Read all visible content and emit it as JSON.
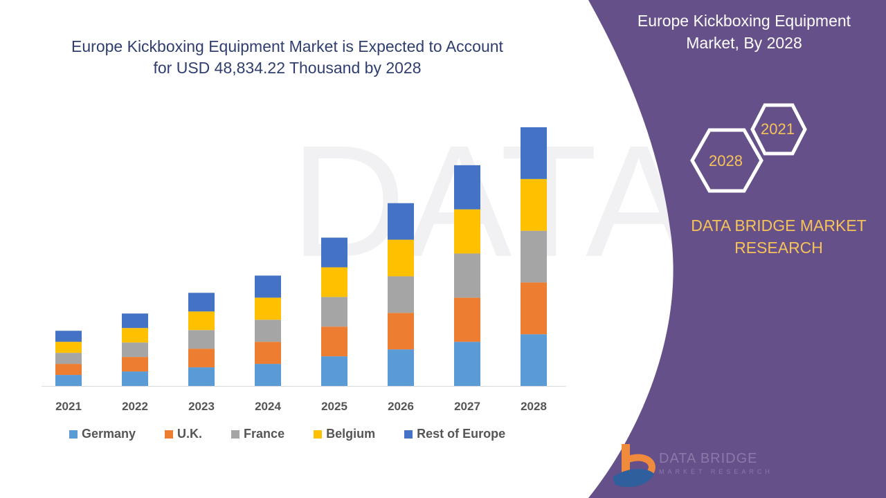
{
  "title_line1": "Europe Kickboxing Equipment Market is Expected to Account",
  "title_line2": "for USD 48,834.22 Thousand by 2028",
  "side_panel": {
    "title_line1": "Europe Kickboxing Equipment",
    "title_line2": "Market, By 2028",
    "hex_start": "2021",
    "hex_end": "2028",
    "brand_line1": "DATA BRIDGE MARKET",
    "brand_line2": "RESEARCH",
    "logo_text": "DATA BRIDGE",
    "logo_sub": "MARKET RESEARCH",
    "color": "#65508a"
  },
  "chart_data": {
    "type": "bar",
    "stacked": true,
    "categories": [
      "2021",
      "2022",
      "2023",
      "2024",
      "2025",
      "2026",
      "2027",
      "2028"
    ],
    "series": [
      {
        "name": "Germany",
        "color": "#5b9bd5",
        "values": [
          16,
          21,
          27,
          32,
          43,
          53,
          64,
          75
        ]
      },
      {
        "name": "U.K.",
        "color": "#ed7d31",
        "values": [
          16,
          21,
          27,
          32,
          43,
          53,
          64,
          75
        ]
      },
      {
        "name": "France",
        "color": "#a5a5a5",
        "values": [
          16,
          21,
          27,
          32,
          43,
          53,
          64,
          75
        ]
      },
      {
        "name": "Belgium",
        "color": "#ffc000",
        "values": [
          16,
          21,
          27,
          32,
          43,
          53,
          64,
          75
        ]
      },
      {
        "name": "Rest of Europe",
        "color": "#4472c4",
        "values": [
          16,
          21,
          27,
          32,
          43,
          53,
          64,
          75
        ]
      }
    ],
    "ylim": [
      0,
      380
    ],
    "grid": false,
    "legend_position": "bottom"
  }
}
